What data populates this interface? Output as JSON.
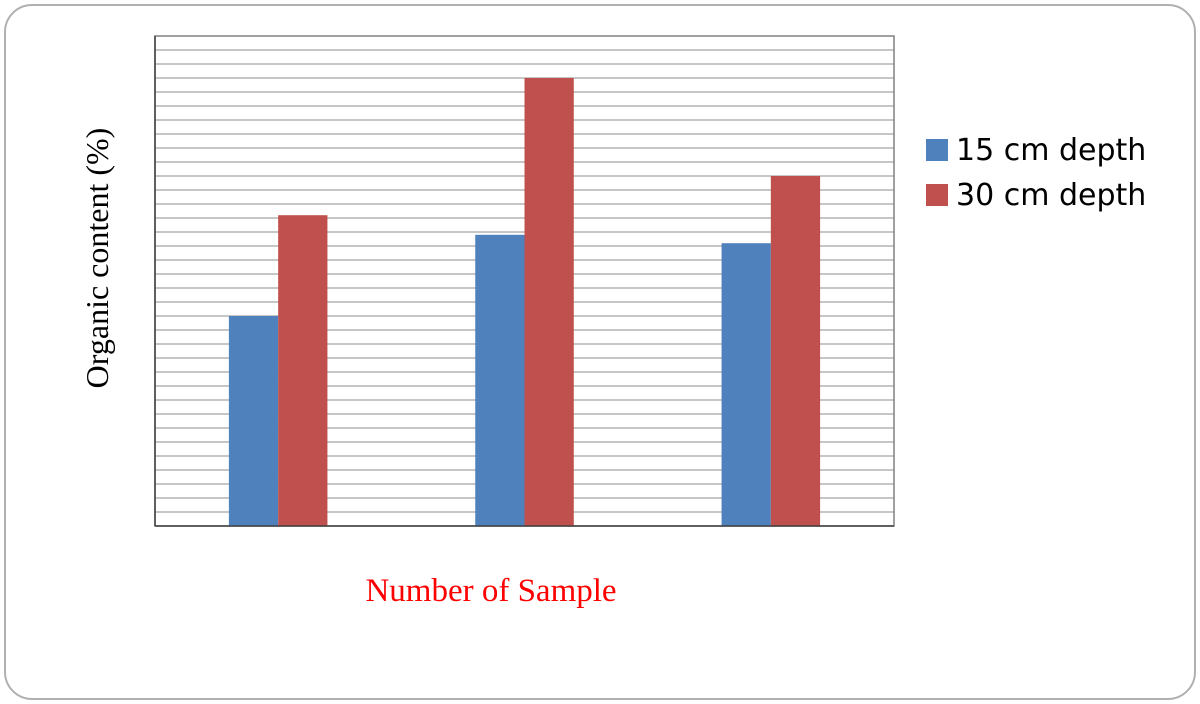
{
  "chart_data": {
    "type": "bar",
    "categories": [
      "",
      "",
      ""
    ],
    "series": [
      {
        "name": "15 cm depth",
        "values": [
          7.5,
          10.4,
          10.1
        ],
        "color": "#4F81BD"
      },
      {
        "name": "30 cm depth",
        "values": [
          11.1,
          16.0,
          12.5
        ],
        "color": "#C0504D"
      }
    ],
    "title": "",
    "xlabel": "Number of Sample",
    "ylabel": "Organic content (%)",
    "xlabel_color": "#FF0000",
    "ylim": [
      0,
      17.5
    ],
    "grid_step": 0.5,
    "grid": true,
    "legend_position": "right"
  }
}
